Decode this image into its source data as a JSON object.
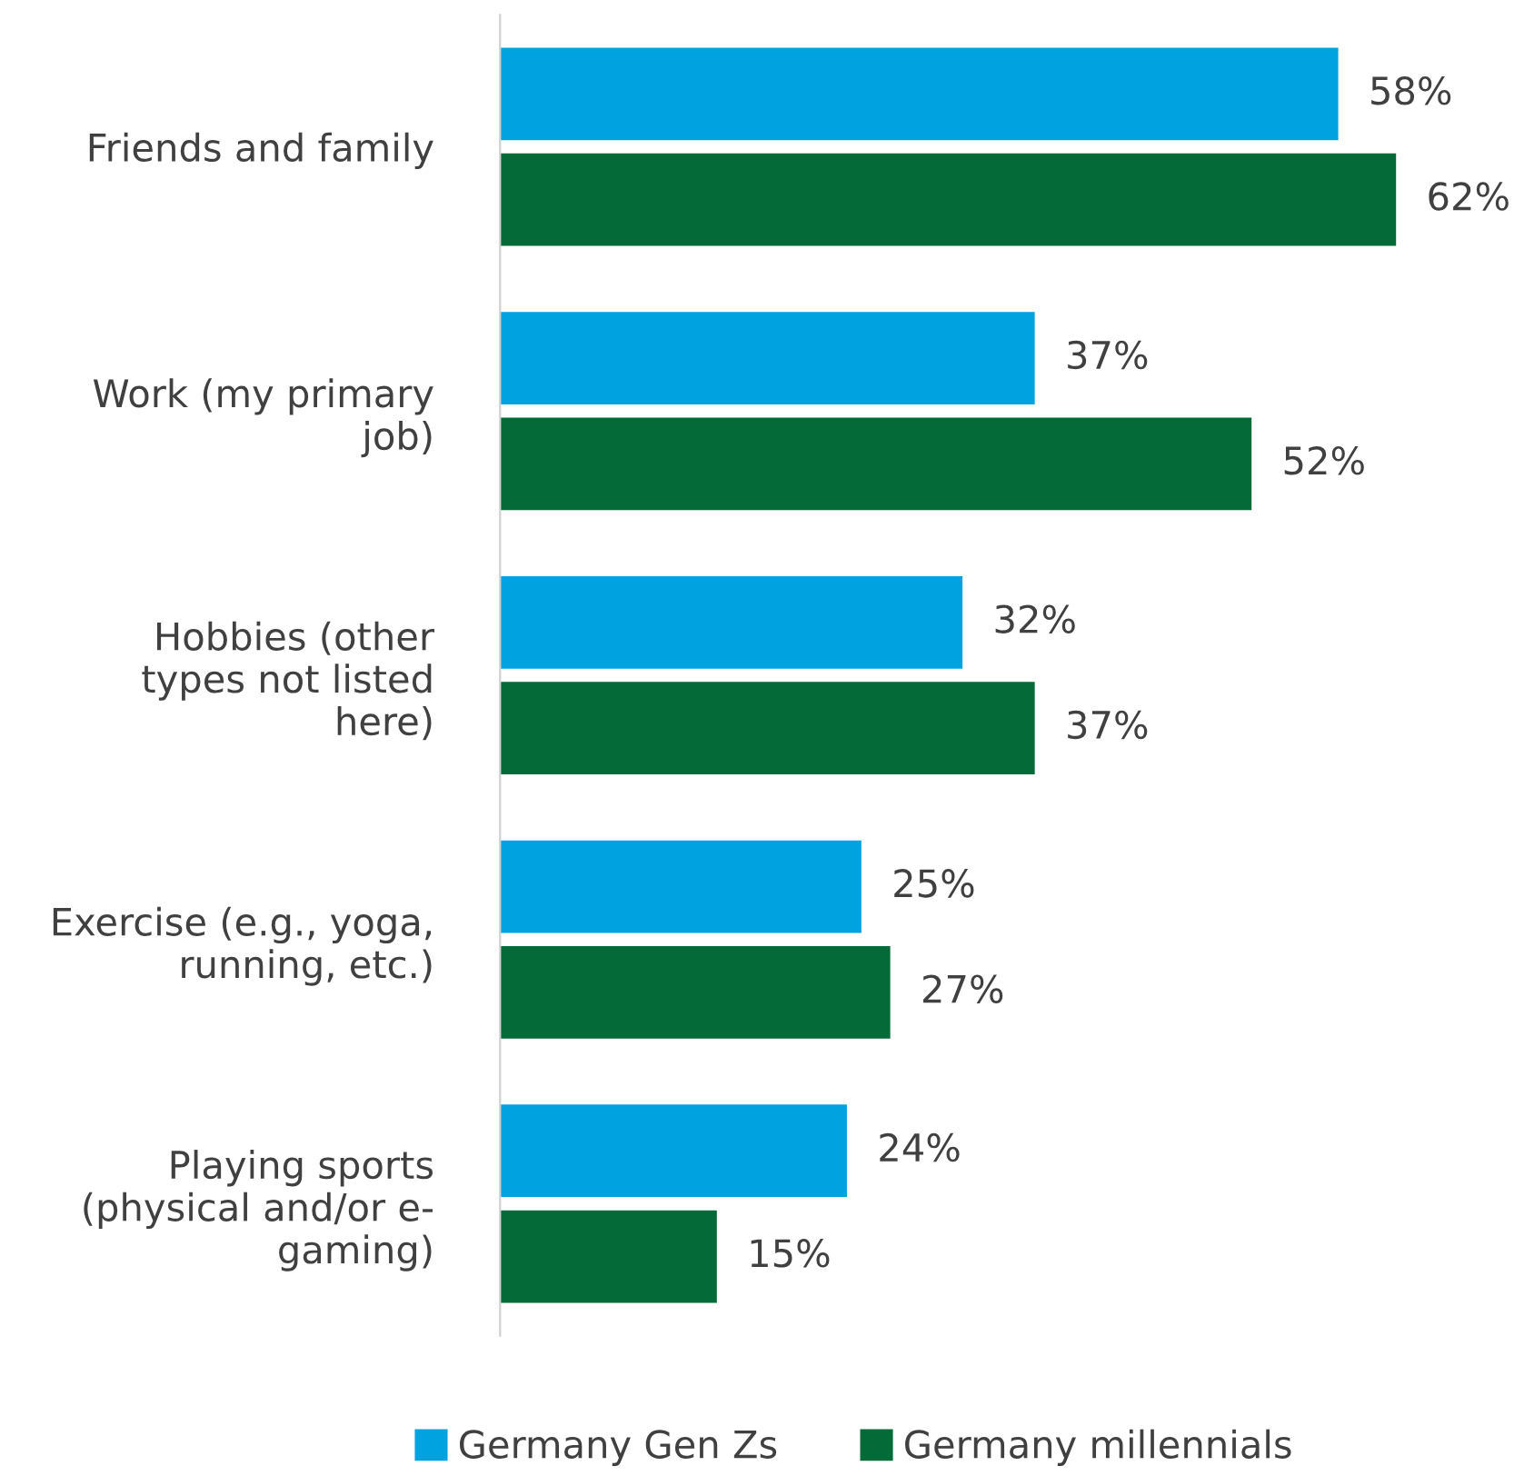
{
  "chart_data": {
    "type": "bar",
    "orientation": "horizontal",
    "categories": [
      "Friends and family",
      "Work (my primary\njob)",
      "Hobbies (other\ntypes not listed\nhere)",
      "Exercise (e.g., yoga,\nrunning, etc.)",
      "Playing sports\n(physical and/or e-\ngaming)"
    ],
    "series": [
      {
        "name": "Germany Gen Zs",
        "color": "#00a3e0",
        "values": [
          58,
          37,
          32,
          25,
          24
        ],
        "value_labels": [
          "58%",
          "37%",
          "32%",
          "25%",
          "24%"
        ]
      },
      {
        "name": "Germany millennials",
        "color": "#046a38",
        "values": [
          62,
          52,
          37,
          27,
          15
        ],
        "value_labels": [
          "62%",
          "52%",
          "37%",
          "27%",
          "15%"
        ]
      }
    ],
    "tick_labels": "y",
    "grid": false,
    "legend": "bottom"
  }
}
